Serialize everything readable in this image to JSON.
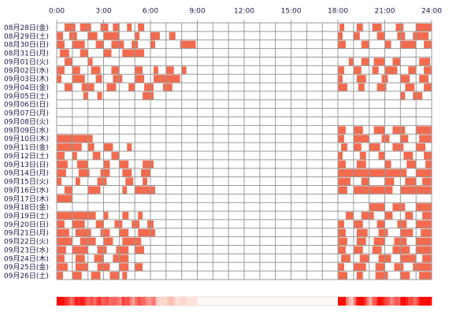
{
  "chart_data": {
    "type": "timeline",
    "color": "#f26b4f",
    "categories": [
      "08月28日(金)",
      "08月29日(土)",
      "08月30日(日)",
      "08月31日(月)",
      "09月01日(火)",
      "09月02日(水)",
      "09月03日(木)",
      "09月04日(金)",
      "09月05日(土)",
      "09月06日(日)",
      "09月07日(月)",
      "09月08日(火)",
      "09月09日(水)",
      "09月10日(木)",
      "09月11日(金)",
      "09月12日(土)",
      "09月13日(日)",
      "09月14日(月)",
      "09月15日(火)",
      "09月16日(水)",
      "09月17日(木)",
      "09月18日(金)",
      "09月19日(土)",
      "09月20日(日)",
      "09月21日(月)",
      "09月22日(火)",
      "09月23日(水)",
      "09月24日(木)",
      "09月25日(金)",
      "09月26日(土)"
    ],
    "values": [
      [
        [
          0.5,
          1.2
        ],
        [
          1.5,
          2.2
        ],
        [
          2.8,
          3.3
        ],
        [
          3.6,
          4.0
        ],
        [
          4.5,
          4.8
        ],
        [
          5.2,
          5.6
        ],
        [
          18.1,
          18.4
        ],
        [
          19.2,
          19.6
        ],
        [
          20.2,
          20.8
        ],
        [
          21.7,
          22.2
        ],
        [
          23,
          24
        ]
      ],
      [
        [
          0,
          0.4
        ],
        [
          0.8,
          1.3
        ],
        [
          2.0,
          2.6
        ],
        [
          3.0,
          4.0
        ],
        [
          5.0,
          5.3
        ],
        [
          6.0,
          6.6
        ],
        [
          7.2,
          7.6
        ],
        [
          18,
          18.3
        ],
        [
          19,
          19.4
        ],
        [
          20.5,
          21
        ],
        [
          21.8,
          22.3
        ],
        [
          22.8,
          23.8
        ]
      ],
      [
        [
          0,
          0.5
        ],
        [
          1.0,
          1.8
        ],
        [
          2.5,
          3.0
        ],
        [
          3.5,
          4.3
        ],
        [
          4.8,
          5.2
        ],
        [
          6,
          6.3
        ],
        [
          7.9,
          8.9
        ],
        [
          18,
          18.5
        ],
        [
          19.5,
          20
        ],
        [
          21,
          21.4
        ],
        [
          22,
          23
        ],
        [
          23.5,
          24
        ]
      ],
      [
        [
          0.2,
          0.8
        ],
        [
          1.5,
          2.0
        ],
        [
          3.0,
          3.5
        ],
        [
          4.2,
          5.6
        ]
      ],
      [
        [
          0.5,
          1
        ],
        [
          2,
          2.3
        ],
        [
          18.7,
          19
        ],
        [
          19.5,
          20
        ],
        [
          20.3,
          21
        ],
        [
          21.5,
          22
        ],
        [
          23.2,
          23.9
        ]
      ],
      [
        [
          0,
          0.5
        ],
        [
          1,
          1.5
        ],
        [
          2.2,
          2.8
        ],
        [
          3.5,
          4
        ],
        [
          5,
          5.5
        ],
        [
          6.2,
          6.5
        ],
        [
          7,
          7.5
        ],
        [
          8,
          8.3
        ],
        [
          18,
          18.4
        ],
        [
          19,
          19.5
        ],
        [
          20.2,
          20.6
        ],
        [
          21,
          21.8
        ],
        [
          22.5,
          23
        ],
        [
          23.5,
          24
        ]
      ],
      [
        [
          0,
          0.3
        ],
        [
          1.0,
          1.8
        ],
        [
          2.5,
          2.9
        ],
        [
          3.6,
          4.2
        ],
        [
          5.0,
          5.6
        ],
        [
          6.2,
          7.9
        ],
        [
          18,
          18.3
        ],
        [
          19.2,
          19.8
        ],
        [
          20.8,
          21.2
        ],
        [
          22,
          22.6
        ],
        [
          23.2,
          23.8
        ]
      ],
      [
        [
          0.5,
          1.0
        ],
        [
          1.6,
          2.4
        ],
        [
          3.2,
          3.8
        ],
        [
          4.6,
          5.0
        ],
        [
          5.6,
          6.2
        ],
        [
          6.8,
          7.4
        ],
        [
          18,
          18.6
        ],
        [
          19.3,
          19.7
        ],
        [
          20.5,
          21.1
        ],
        [
          22.3,
          22.9
        ],
        [
          23.5,
          24
        ]
      ],
      [
        [
          1.7,
          2.0
        ],
        [
          2.6,
          2.9
        ],
        [
          5.5,
          6.2
        ],
        [
          22,
          22.3
        ],
        [
          22.8,
          23.4
        ]
      ],
      [],
      [],
      [],
      [
        [
          18,
          18.5
        ],
        [
          19,
          19.6
        ],
        [
          20.3,
          21
        ],
        [
          21.5,
          22.3
        ],
        [
          23,
          24
        ]
      ],
      [
        [
          0,
          2.3
        ],
        [
          18,
          18.4
        ],
        [
          19,
          20
        ],
        [
          20.8,
          21.3
        ],
        [
          22,
          22.5
        ],
        [
          23.2,
          24
        ]
      ],
      [
        [
          0,
          1.6
        ],
        [
          2.0,
          2.4
        ],
        [
          3.0,
          3.6
        ],
        [
          4.5,
          4.8
        ],
        [
          18.2,
          18.6
        ],
        [
          19,
          19.5
        ],
        [
          20,
          20.7
        ],
        [
          21.5,
          22.2
        ],
        [
          23,
          23.6
        ]
      ],
      [
        [
          0,
          0.5
        ],
        [
          1,
          1.3
        ],
        [
          2.3,
          2.8
        ],
        [
          3.5,
          4.0
        ],
        [
          18,
          18.3
        ],
        [
          19.4,
          19.8
        ],
        [
          20.6,
          21.0
        ],
        [
          22.2,
          22.8
        ],
        [
          23.5,
          24
        ]
      ],
      [
        [
          0,
          0.7
        ],
        [
          1.3,
          2.0
        ],
        [
          3.0,
          3.4
        ],
        [
          4.0,
          4.6
        ],
        [
          5.5,
          6.2
        ],
        [
          18,
          18.5
        ],
        [
          19.2,
          19.8
        ],
        [
          21,
          21.4
        ],
        [
          22.4,
          23
        ],
        [
          23.6,
          24
        ]
      ],
      [
        [
          0,
          0.6
        ],
        [
          1.4,
          2.1
        ],
        [
          2.8,
          3.4
        ],
        [
          4.2,
          4.8
        ],
        [
          5.4,
          6.0
        ],
        [
          18,
          22.4
        ],
        [
          23,
          24
        ]
      ],
      [
        [
          0,
          0.3
        ],
        [
          1.2,
          1.5
        ],
        [
          2.6,
          3.2
        ],
        [
          4.4,
          4.9
        ],
        [
          5.5,
          5.8
        ],
        [
          18,
          18.8
        ],
        [
          19.5,
          20
        ],
        [
          21,
          21.6
        ],
        [
          22.3,
          23
        ],
        [
          23.4,
          24
        ]
      ],
      [
        [
          0.5,
          1.0
        ],
        [
          2.0,
          2.8
        ],
        [
          4.2,
          4.5
        ],
        [
          5.0,
          6.3
        ],
        [
          18,
          18.6
        ],
        [
          19,
          21.5
        ],
        [
          22,
          24
        ]
      ],
      [
        [
          0,
          1.0
        ]
      ],
      [
        [
          20,
          21
        ],
        [
          21.5,
          22.3
        ],
        [
          23,
          24
        ]
      ],
      [
        [
          0,
          2.5
        ],
        [
          3,
          3.3
        ],
        [
          4.2,
          4.6
        ],
        [
          5.2,
          5.5
        ],
        [
          18.5,
          19
        ],
        [
          19.5,
          20.3
        ],
        [
          21,
          21.5
        ],
        [
          22.3,
          22.8
        ],
        [
          23.4,
          24
        ]
      ],
      [
        [
          0,
          0.5
        ],
        [
          1,
          1.8
        ],
        [
          2.5,
          3.0
        ],
        [
          3.7,
          4.2
        ],
        [
          4.8,
          5.3
        ],
        [
          5.8,
          6.2
        ],
        [
          18,
          18.4
        ],
        [
          19,
          19.6
        ],
        [
          20.5,
          21
        ],
        [
          21.8,
          22.4
        ],
        [
          23,
          24
        ]
      ],
      [
        [
          0,
          0.8
        ],
        [
          1.2,
          2.2
        ],
        [
          2.8,
          3.4
        ],
        [
          4.0,
          4.6
        ],
        [
          5.2,
          6.3
        ],
        [
          18,
          18.5
        ],
        [
          19.2,
          19.9
        ],
        [
          20.6,
          21.2
        ],
        [
          22,
          22.8
        ],
        [
          23.3,
          24
        ]
      ],
      [
        [
          0,
          1.0
        ],
        [
          1.5,
          2.5
        ],
        [
          3.0,
          3.6
        ],
        [
          4.2,
          5.4
        ],
        [
          18,
          18.6
        ],
        [
          19.2,
          19.8
        ],
        [
          20.3,
          21
        ],
        [
          21.6,
          22.4
        ],
        [
          23,
          24
        ]
      ],
      [
        [
          0,
          0.6
        ],
        [
          1.0,
          2.0
        ],
        [
          2.6,
          3.2
        ],
        [
          3.8,
          4.6
        ],
        [
          5.0,
          5.6
        ],
        [
          18,
          18.5
        ],
        [
          19,
          19.6
        ],
        [
          20.2,
          20.8
        ],
        [
          21.5,
          22.6
        ],
        [
          23,
          24
        ]
      ],
      [
        [
          0,
          0.5
        ],
        [
          1.2,
          1.8
        ],
        [
          2.4,
          3.0
        ],
        [
          3.6,
          4.6
        ],
        [
          18.2,
          18.8
        ],
        [
          19.4,
          20
        ],
        [
          20.6,
          21.4
        ],
        [
          22,
          23
        ],
        [
          23.4,
          24
        ]
      ],
      [
        [
          0,
          0.7
        ],
        [
          1.2,
          2.0
        ],
        [
          2.6,
          3.4
        ],
        [
          4.0,
          4.6
        ],
        [
          5.0,
          5.5
        ],
        [
          18,
          18.4
        ],
        [
          19,
          19.8
        ],
        [
          20.4,
          21
        ],
        [
          21.6,
          22.2
        ],
        [
          22.8,
          24
        ]
      ],
      [
        [
          0,
          0.4
        ],
        [
          1.0,
          1.6
        ],
        [
          2.2,
          2.8
        ],
        [
          3.4,
          4.0
        ],
        [
          4.2,
          4.5
        ],
        [
          18,
          18.6
        ],
        [
          19.2,
          19.6
        ],
        [
          20.4,
          21.2
        ],
        [
          22,
          22.6
        ],
        [
          23.2,
          24
        ]
      ]
    ],
    "xlim": [
      0,
      24
    ],
    "xticks": [
      {
        "value": 0,
        "label": "0:00"
      },
      {
        "value": 3,
        "label": "3:00"
      },
      {
        "value": 6,
        "label": "6:00"
      },
      {
        "value": 9,
        "label": "9:00"
      },
      {
        "value": 12,
        "label": "12:00"
      },
      {
        "value": 15,
        "label": "15:00"
      },
      {
        "value": 18,
        "label": "18:00"
      },
      {
        "value": 21,
        "label": "21:00"
      },
      {
        "value": 24,
        "label": "24:00"
      }
    ]
  }
}
